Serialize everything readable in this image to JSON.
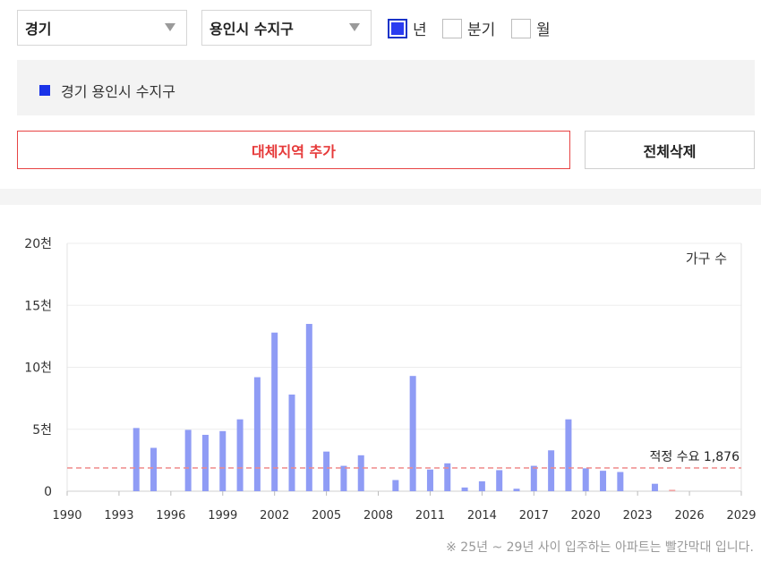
{
  "filters": {
    "province": "경기",
    "city": "용인시 수지구",
    "periods": [
      {
        "label": "년",
        "checked": true
      },
      {
        "label": "분기",
        "checked": false
      },
      {
        "label": "월",
        "checked": false
      }
    ]
  },
  "selected_region": {
    "label": "경기 용인시 수지구",
    "color": "#1a33e8"
  },
  "buttons": {
    "add_region": "대체지역 추가",
    "clear_all": "전체삭제"
  },
  "footnote": "※ 25년 ~ 29년 사이 입주하는 아파트는 빨간막대 입니다.",
  "colors": {
    "bar": "#8f9cf5",
    "future_bar": "#f2a5a5",
    "threshold_line": "#ef8a8a",
    "accent_red": "#e63a3a"
  },
  "chart_data": {
    "type": "bar",
    "title": "",
    "series_label": "가구 수",
    "ylabel": "",
    "xlabel": "",
    "ylim": [
      0,
      20000
    ],
    "xlim": [
      1990,
      2029
    ],
    "ytick_values": [
      0,
      5000,
      10000,
      15000,
      20000
    ],
    "ytick_labels": [
      "0",
      "5천",
      "10천",
      "15천",
      "20천"
    ],
    "xticks": [
      1990,
      1993,
      1996,
      1999,
      2002,
      2005,
      2008,
      2011,
      2014,
      2017,
      2020,
      2023,
      2026,
      2029
    ],
    "grid": true,
    "threshold": {
      "label": "적정 수요 1,876",
      "value": 1876
    },
    "bars": [
      {
        "year": 1994,
        "value": 5100
      },
      {
        "year": 1995,
        "value": 3500
      },
      {
        "year": 1997,
        "value": 4950
      },
      {
        "year": 1998,
        "value": 4550
      },
      {
        "year": 1999,
        "value": 4850
      },
      {
        "year": 2000,
        "value": 5800
      },
      {
        "year": 2001,
        "value": 9200
      },
      {
        "year": 2002,
        "value": 12800
      },
      {
        "year": 2003,
        "value": 7800
      },
      {
        "year": 2004,
        "value": 13500
      },
      {
        "year": 2005,
        "value": 3200
      },
      {
        "year": 2006,
        "value": 2050
      },
      {
        "year": 2007,
        "value": 2900
      },
      {
        "year": 2009,
        "value": 900
      },
      {
        "year": 2010,
        "value": 9300
      },
      {
        "year": 2011,
        "value": 1750
      },
      {
        "year": 2012,
        "value": 2250
      },
      {
        "year": 2013,
        "value": 300
      },
      {
        "year": 2014,
        "value": 800
      },
      {
        "year": 2015,
        "value": 1700
      },
      {
        "year": 2016,
        "value": 200
      },
      {
        "year": 2017,
        "value": 2050
      },
      {
        "year": 2018,
        "value": 3300
      },
      {
        "year": 2019,
        "value": 5800
      },
      {
        "year": 2020,
        "value": 1850
      },
      {
        "year": 2021,
        "value": 1650
      },
      {
        "year": 2022,
        "value": 1550
      },
      {
        "year": 2024,
        "value": 600
      },
      {
        "year": 2025,
        "value": 120,
        "future": true
      }
    ]
  }
}
